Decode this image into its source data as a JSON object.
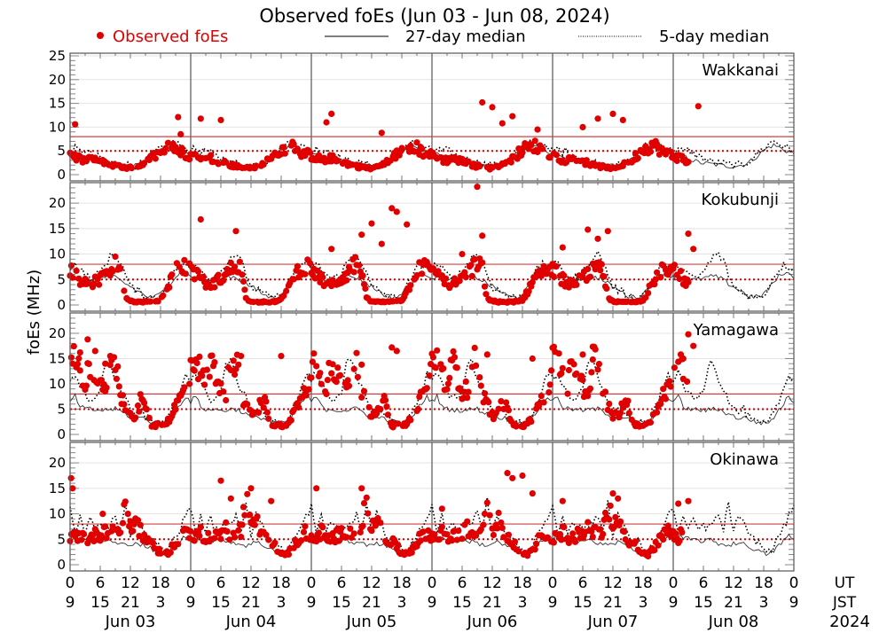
{
  "chart_data": {
    "type": "scatter",
    "title": "Observed foEs (Jun 03 - Jun 08, 2024)",
    "ylabel": "foEs (MHz)",
    "xlabel_rows": [
      "UT",
      "JST"
    ],
    "year_label": "2024",
    "legend": [
      {
        "name": "Observed foEs",
        "style": "red-dot",
        "color": "#e00000"
      },
      {
        "name": "27-day median",
        "style": "solid-line",
        "color": "#333333"
      },
      {
        "name": "5-day median",
        "style": "dotted-line",
        "color": "#000000"
      }
    ],
    "legend_position": "top",
    "days": [
      "Jun 03",
      "Jun 04",
      "Jun 05",
      "Jun 06",
      "Jun 07",
      "Jun 08"
    ],
    "x_ticks_ut": [
      "0",
      "6",
      "12",
      "18"
    ],
    "x_ticks_jst": [
      "9",
      "15",
      "21",
      "3"
    ],
    "x_end_ut": "0",
    "x_end_jst": "9",
    "xlim_hours": [
      0,
      144
    ],
    "ylim": [
      0,
      25
    ],
    "y_ticks_first_panel": [
      "0",
      "5",
      "10",
      "15",
      "20",
      "25"
    ],
    "y_ticks_other_panels": [
      "0",
      "5",
      "10",
      "15",
      "20"
    ],
    "reference_lines": [
      {
        "value": 8,
        "style": "solid",
        "color": "#d04040"
      },
      {
        "value": 5,
        "style": "dotted",
        "color": "#d00000"
      }
    ],
    "grid": true,
    "observed_until_hour": 123,
    "panels": [
      {
        "station": "Wakkanai",
        "median27_profile": [
          4.5,
          4.2,
          3.8,
          3.4,
          3.0,
          2.6,
          2.4,
          2.3,
          2.2,
          2.0,
          1.9,
          1.8,
          1.8,
          1.9,
          2.1,
          2.6,
          3.3,
          4.2,
          5.0,
          5.8,
          6.2,
          5.8,
          5.2,
          4.8
        ],
        "median5_profile": [
          5.0,
          5.5,
          4.8,
          5.2,
          4.4,
          4.0,
          3.5,
          3.0,
          2.6,
          2.4,
          2.3,
          2.2,
          2.0,
          2.0,
          2.2,
          2.8,
          3.6,
          4.6,
          5.5,
          6.4,
          7.2,
          6.5,
          6.0,
          5.4
        ],
        "observed_profile": [
          4.0,
          3.6,
          3.2,
          3.0,
          3.5,
          3.0,
          2.8,
          2.4,
          2.0,
          1.8,
          1.6,
          1.4,
          1.4,
          1.6,
          2.0,
          2.6,
          3.4,
          4.3,
          5.2,
          5.8,
          6.4,
          5.6,
          4.8,
          4.4
        ],
        "observed_outliers": [
          [
            1,
            10.6
          ],
          [
            21.5,
            12.1
          ],
          [
            22,
            8.5
          ],
          [
            26,
            11.8
          ],
          [
            30,
            11.5
          ],
          [
            51,
            11.0
          ],
          [
            52,
            12.8
          ],
          [
            62,
            8.8
          ],
          [
            82,
            15.2
          ],
          [
            84,
            14.2
          ],
          [
            86,
            10.8
          ],
          [
            88,
            12.3
          ],
          [
            93,
            9.5
          ],
          [
            102,
            10.0
          ],
          [
            105,
            11.8
          ],
          [
            108,
            12.8
          ],
          [
            110,
            11.5
          ],
          [
            125,
            14.4
          ]
        ]
      },
      {
        "station": "Kokubunji",
        "median27_profile": [
          5.5,
          5.2,
          5.0,
          4.8,
          4.9,
          5.0,
          5.2,
          5.5,
          5.6,
          5.4,
          4.8,
          4.2,
          3.6,
          3.0,
          2.4,
          1.8,
          1.5,
          1.6,
          2.2,
          3.2,
          4.4,
          5.6,
          6.4,
          6.0
        ],
        "median5_profile": [
          7.5,
          8.0,
          7.0,
          6.0,
          5.0,
          5.5,
          6.5,
          8.0,
          9.5,
          10.0,
          8.5,
          6.0,
          3.5,
          3.0,
          2.5,
          1.8,
          1.5,
          1.4,
          2.0,
          3.6,
          5.4,
          7.0,
          7.8,
          7.5
        ],
        "observed_profile": [
          7.0,
          6.0,
          5.0,
          4.2,
          4.0,
          4.6,
          5.2,
          6.0,
          7.0,
          8.5,
          7.0,
          1.2,
          0.8,
          0.6,
          0.6,
          0.6,
          0.6,
          0.7,
          1.0,
          2.6,
          4.8,
          6.5,
          7.5,
          7.4
        ],
        "observed_outliers": [
          [
            26,
            16.8
          ],
          [
            33,
            14.5
          ],
          [
            52,
            11.0
          ],
          [
            58,
            13.8
          ],
          [
            60,
            16.0
          ],
          [
            62,
            12.0
          ],
          [
            64,
            19.0
          ],
          [
            65,
            18.3
          ],
          [
            67,
            15.8
          ],
          [
            78,
            10.0
          ],
          [
            81,
            23.2
          ],
          [
            82,
            13.6
          ],
          [
            98,
            11.3
          ],
          [
            103,
            14.8
          ],
          [
            105,
            13.0
          ],
          [
            107,
            14.5
          ],
          [
            123,
            14.0
          ],
          [
            124,
            11.0
          ]
        ]
      },
      {
        "station": "Yamagawa",
        "median27_profile": [
          6.5,
          7.5,
          5.5,
          5.0,
          5.0,
          4.8,
          4.8,
          4.8,
          5.0,
          5.0,
          4.6,
          4.0,
          3.6,
          3.2,
          3.4,
          3.0,
          2.6,
          2.4,
          2.2,
          2.4,
          3.4,
          4.8,
          6.2,
          7.5
        ],
        "median5_profile": [
          11.0,
          12.0,
          10.0,
          8.0,
          7.0,
          7.5,
          8.5,
          14.0,
          14.5,
          11.0,
          9.0,
          7.0,
          5.0,
          4.5,
          5.0,
          3.5,
          2.6,
          2.2,
          2.0,
          2.4,
          4.0,
          6.5,
          9.0,
          12.0
        ],
        "observed_profile": [
          14.0,
          15.5,
          12.0,
          10.0,
          14.0,
          12.5,
          9.0,
          8.5,
          14.8,
          15.0,
          8.0,
          6.0,
          4.0,
          3.5,
          6.5,
          6.0,
          1.8,
          1.8,
          1.8,
          2.0,
          3.5,
          5.5,
          7.5,
          8.8
        ],
        "observed_outliers": [
          [
            2,
            16.2
          ],
          [
            3.5,
            18.8
          ],
          [
            5,
            16.5
          ],
          [
            7,
            14.0
          ],
          [
            8,
            15.5
          ],
          [
            34,
            15.5
          ],
          [
            42,
            15.5
          ],
          [
            58,
            13.8
          ],
          [
            64,
            17.2
          ],
          [
            65,
            16.5
          ],
          [
            83,
            15.8
          ],
          [
            92,
            15.0
          ],
          [
            102,
            15.8
          ],
          [
            104,
            14.8
          ],
          [
            122,
            15.0
          ],
          [
            123,
            19.8
          ],
          [
            124,
            17.5
          ]
        ]
      },
      {
        "station": "Okinawa",
        "median27_profile": [
          5.0,
          5.5,
          5.2,
          5.0,
          4.9,
          4.8,
          4.7,
          4.8,
          4.6,
          4.2,
          4.0,
          3.8,
          4.2,
          4.4,
          4.0,
          3.6,
          3.2,
          2.6,
          2.2,
          2.0,
          2.8,
          3.8,
          4.8,
          5.6
        ],
        "median5_profile": [
          11.5,
          6.0,
          9.5,
          6.5,
          9.0,
          7.0,
          7.5,
          7.5,
          8.0,
          10.0,
          6.5,
          12.5,
          6.0,
          10.0,
          8.0,
          5.5,
          5.0,
          4.5,
          3.0,
          2.4,
          4.0,
          5.5,
          7.5,
          9.5
        ],
        "observed_profile": [
          5.5,
          5.2,
          6.5,
          5.0,
          5.2,
          5.8,
          6.0,
          7.0,
          6.0,
          6.5,
          7.0,
          12.8,
          7.0,
          9.0,
          6.5,
          5.0,
          4.5,
          3.5,
          2.2,
          2.0,
          3.0,
          4.5,
          5.5,
          6.5
        ],
        "observed_outliers": [
          [
            0.2,
            17.0
          ],
          [
            0.5,
            15.0
          ],
          [
            6.5,
            10.0
          ],
          [
            30,
            16.5
          ],
          [
            32,
            13.0
          ],
          [
            36,
            15.0
          ],
          [
            40,
            12.5
          ],
          [
            49,
            15.0
          ],
          [
            58,
            15.0
          ],
          [
            74,
            11.0
          ],
          [
            87,
            18.0
          ],
          [
            88,
            17.0
          ],
          [
            90,
            17.5
          ],
          [
            92,
            14.0
          ],
          [
            98,
            12.5
          ],
          [
            108,
            14.0
          ],
          [
            109,
            13.0
          ],
          [
            121,
            12.0
          ],
          [
            123,
            12.5
          ]
        ]
      }
    ]
  }
}
